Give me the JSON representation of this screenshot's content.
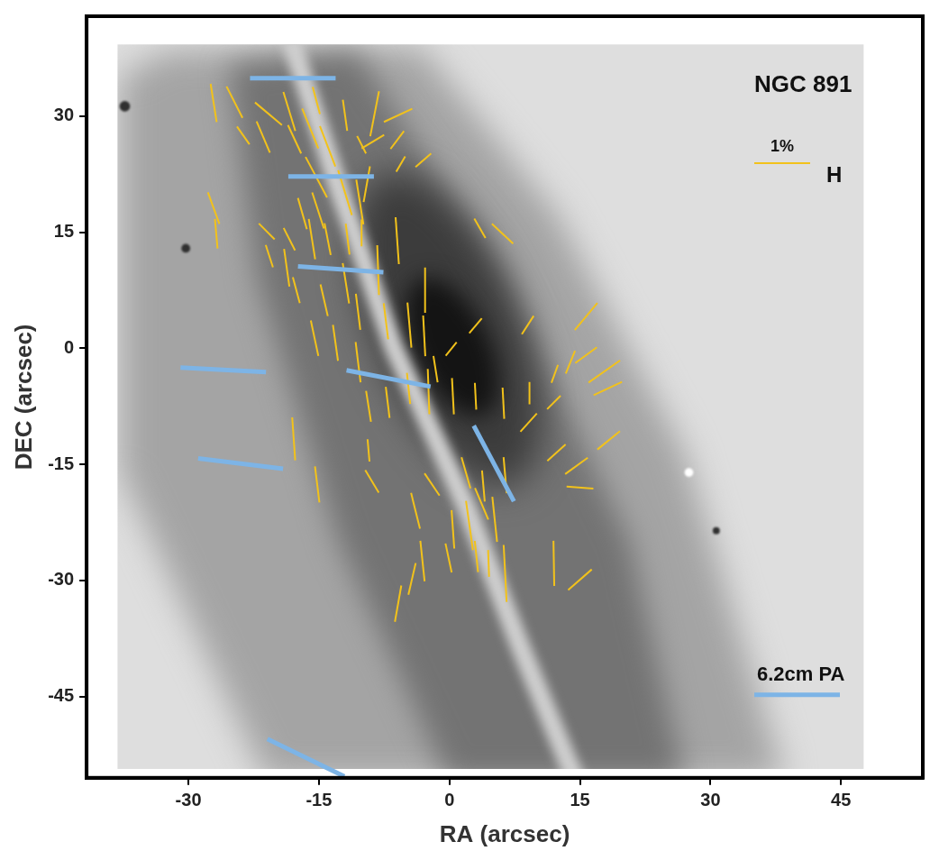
{
  "chart_data": {
    "type": "vector",
    "title": "NGC 891",
    "x_label": "RA (arcsec)",
    "y_label": "DEC (arcsec)",
    "xlim": [
      -41.7,
      54.4
    ],
    "ylim": [
      -55.5,
      42.9
    ],
    "xticks": [
      -30,
      -15,
      0,
      15,
      30,
      45
    ],
    "yticks": [
      -45,
      -30,
      -15,
      0,
      15,
      30
    ],
    "grid": false,
    "series": [
      {
        "name": "H",
        "color": "#f2c21b",
        "scale_label": "1%",
        "scale_value": 1,
        "vectors": {
          "x": [
            -27.1,
            -24.7,
            -23.7,
            -20.8,
            -21.4,
            -18.4,
            -17.8,
            -16.0,
            -15.3,
            -14.0,
            -15.3,
            -12.0,
            -10.1,
            -8.6,
            -5.9,
            -8.8,
            -6.0,
            -5.6,
            -3.0,
            -12.0,
            -10.3,
            -9.5,
            -15.1,
            -16.9,
            -27.1,
            -26.8,
            -21.0,
            -20.7,
            -18.4,
            -18.7,
            -15.8,
            -14.0,
            -11.7,
            -10.1,
            -6.0,
            -8.2,
            -11.9,
            -14.4,
            -17.6,
            -10.5,
            -7.3,
            -4.6,
            -2.8,
            -2.9,
            3.5,
            6.1,
            9.0,
            3.0,
            0.2,
            -1.6,
            0.4,
            -2.4,
            -4.7,
            -7.1,
            -9.3,
            3.0,
            6.2,
            9.2,
            12.1,
            13.9,
            15.7,
            15.7,
            17.8,
            18.2,
            12.0,
            9.1,
            12.3,
            18.3,
            14.6,
            15.0,
            6.4,
            3.9,
            1.9,
            -2.0,
            -3.9,
            0.4,
            2.3,
            3.7,
            5.2,
            6.4,
            4.5,
            3.1,
            -0.1,
            -3.1,
            -5.9,
            -4.3,
            12.0,
            15.0,
            -17.9,
            -15.2,
            -8.9,
            -9.3,
            -15.5,
            -13.1,
            -10.5
          ],
          "y": [
            31.7,
            31.8,
            27.5,
            30.3,
            27.3,
            30.6,
            27.0,
            28.4,
            32.0,
            26.1,
            22.1,
            30.1,
            26.3,
            30.3,
            30.1,
            26.7,
            26.9,
            23.8,
            24.3,
            20.1,
            18.9,
            21.2,
            17.8,
            17.4,
            18.1,
            14.8,
            15.1,
            11.9,
            14.1,
            10.4,
            14.1,
            14.1,
            14.1,
            14.9,
            13.9,
            10.1,
            8.4,
            6.2,
            7.5,
            4.7,
            3.5,
            3.0,
            7.5,
            1.6,
            15.5,
            14.8,
            3.0,
            2.9,
            -0.1,
            -2.7,
            -6.2,
            -5.6,
            -5.2,
            -7.0,
            -7.5,
            -6.2,
            -7.1,
            -5.8,
            -3.3,
            -1.8,
            4.1,
            -0.9,
            -3.0,
            -5.2,
            -7.0,
            -9.6,
            -13.5,
            -11.9,
            -15.2,
            -18.0,
            -16.4,
            -17.8,
            -16.1,
            -17.6,
            -21.0,
            -23.4,
            -22.9,
            -20.1,
            -22.1,
            -29.1,
            -27.8,
            -26.9,
            -27.1,
            -27.5,
            -33.0,
            -29.8,
            -27.8,
            -29.9,
            -11.7,
            -17.6,
            -17.2,
            -13.2,
            1.3,
            0.7,
            -1.8
          ],
          "p": [
            0.69,
            0.63,
            0.39,
            0.63,
            0.61,
            0.73,
            0.56,
            0.77,
            0.5,
            0.77,
            0.82,
            0.56,
            0.35,
            0.82,
            0.56,
            0.47,
            0.4,
            0.32,
            0.37,
            0.84,
            0.81,
            0.65,
            0.68,
            0.58,
            0.6,
            0.53,
            0.4,
            0.42,
            0.45,
            0.68,
            0.73,
            0.58,
            0.56,
            0.48,
            0.84,
            0.89,
            0.73,
            0.58,
            0.48,
            0.65,
            0.65,
            0.81,
            0.81,
            0.73,
            0.4,
            0.52,
            0.39,
            0.35,
            0.31,
            0.48,
            0.65,
            0.81,
            0.56,
            0.56,
            0.56,
            0.48,
            0.56,
            0.4,
            0.34,
            0.44,
            0.63,
            0.48,
            0.69,
            0.56,
            0.34,
            0.44,
            0.44,
            0.52,
            0.5,
            0.48,
            0.65,
            0.56,
            0.58,
            0.48,
            0.66,
            0.69,
            0.89,
            0.61,
            0.81,
            1.02,
            0.48,
            0.56,
            0.53,
            0.73,
            0.66,
            0.58,
            0.81,
            0.56,
            0.77,
            0.65,
            0.47,
            0.4,
            0.65,
            0.65,
            0.73
          ],
          "angle": [
            99,
            117,
            125,
            140,
            113,
            107,
            115,
            112,
            105,
            111,
            118,
            98,
            117,
            79,
            25,
            31,
            53,
            60,
            41,
            107,
            99,
            80,
            108,
            106,
            110,
            95,
            135,
            108,
            117,
            98,
            99,
            101,
            97,
            90,
            94,
            92,
            99,
            103,
            105,
            97,
            97,
            95,
            90,
            93,
            120,
            137,
            57,
            50,
            51,
            99,
            93,
            92,
            96,
            97,
            99,
            93,
            93,
            90,
            70,
            68,
            50,
            36,
            35,
            25,
            45,
            48,
            42,
            39,
            36,
            176,
            95,
            95,
            106,
            124,
            104,
            94,
            98,
            113,
            96,
            93,
            92,
            96,
            102,
            96,
            80,
            77,
            91,
            41,
            94,
            97,
            121,
            95,
            102,
            98,
            97
          ]
        }
      },
      {
        "name": "6.2cm PA",
        "color": "#7db4e6",
        "vectors": {
          "x": [
            -18.0,
            -13.6,
            -12.5,
            -26.0,
            -7.0,
            -24.0,
            5.1,
            -16.5
          ],
          "y": [
            34.9,
            22.2,
            10.2,
            -2.8,
            -3.9,
            -14.9,
            -14.9,
            -52.9
          ],
          "angle": [
            0,
            0,
            176,
            177,
            169,
            173,
            118,
            154
          ]
        }
      }
    ]
  }
}
